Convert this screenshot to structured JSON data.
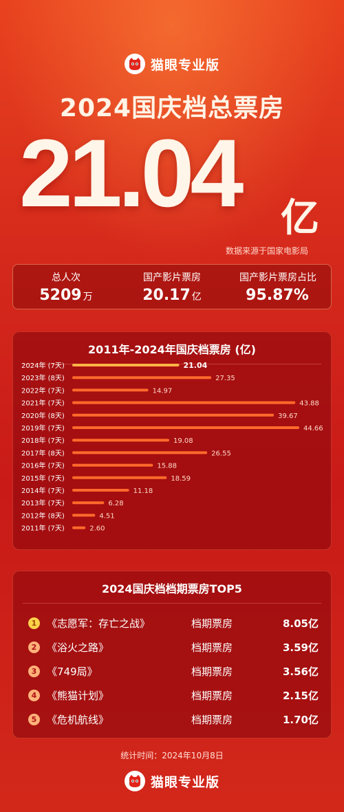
{
  "brand": {
    "name": "猫眼专业版"
  },
  "header": {
    "title": "2024国庆档总票房",
    "total_value": "21.04",
    "total_unit": "亿",
    "source": "数据来源于国家电影局"
  },
  "stats": [
    {
      "label": "总人次",
      "value": "5209",
      "unit": "万"
    },
    {
      "label": "国产影片票房",
      "value": "20.17",
      "unit": "亿"
    },
    {
      "label": "国产影片票房占比",
      "value": "95.87%",
      "unit": ""
    }
  ],
  "chart_data": {
    "type": "bar",
    "orientation": "horizontal",
    "title": "2011年-2024年国庆档票房 (亿)",
    "categories": [
      "2024年 (7天)",
      "2023年 (8天)",
      "2022年 (7天)",
      "2021年 (7天)",
      "2020年 (8天)",
      "2019年 (7天)",
      "2018年 (7天)",
      "2017年 (8天)",
      "2016年 (7天)",
      "2015年 (7天)",
      "2014年 (7天)",
      "2013年 (7天)",
      "2012年 (8天)",
      "2011年 (7天)"
    ],
    "values": [
      21.04,
      27.35,
      14.97,
      43.88,
      39.67,
      44.66,
      19.08,
      26.55,
      15.88,
      18.59,
      11.18,
      6.28,
      4.51,
      2.6
    ],
    "value_labels": [
      "21.04",
      "27.35",
      "14.97",
      "43.88",
      "39.67",
      "44.66",
      "19.08",
      "26.55",
      "15.88",
      "18.59",
      "11.18",
      "6.28",
      "4.51",
      "2.60"
    ],
    "colors": {
      "highlight": "#ffb347",
      "bar": "#ff6a2b",
      "label": "#ffd9c8",
      "highlight_label": "#ffffff"
    },
    "xlim": [
      0,
      44.66
    ]
  },
  "top5": {
    "title": "2024国庆档档期票房TOP5",
    "items": [
      {
        "rank": "1",
        "name": "《志愿军：存亡之战》",
        "tag": "档期票房",
        "value": "8.05亿"
      },
      {
        "rank": "2",
        "name": "《浴火之路》",
        "tag": "档期票房",
        "value": "3.59亿"
      },
      {
        "rank": "3",
        "name": "《749局》",
        "tag": "档期票房",
        "value": "3.56亿"
      },
      {
        "rank": "4",
        "name": "《熊猫计划》",
        "tag": "档期票房",
        "value": "2.15亿"
      },
      {
        "rank": "5",
        "name": "《危机航线》",
        "tag": "档期票房",
        "value": "1.70亿"
      }
    ]
  },
  "footer": {
    "time": "统计时间：2024年10月8日"
  }
}
